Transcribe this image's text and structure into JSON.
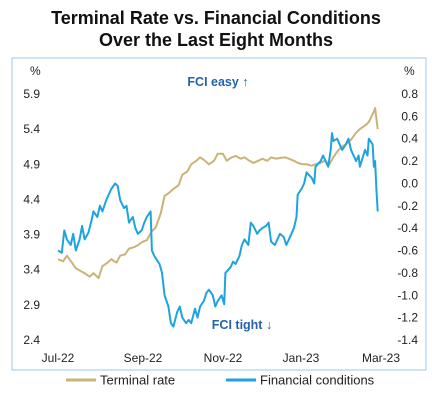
{
  "chart_data": {
    "type": "line",
    "title": [
      "Terminal Rate vs. Financial Conditions",
      "Over the Last Eight Months"
    ],
    "left_axis": {
      "unit": "%",
      "ticks": [
        2.4,
        2.9,
        3.4,
        3.9,
        4.4,
        4.9,
        5.4,
        5.9
      ],
      "ylim": [
        2.4,
        5.9
      ]
    },
    "right_axis": {
      "unit": "%",
      "ticks": [
        -1.4,
        -1.2,
        -1.0,
        -0.8,
        -0.6,
        -0.4,
        -0.2,
        0.0,
        0.2,
        0.4,
        0.6,
        0.8
      ],
      "ylim": [
        -1.4,
        0.8
      ]
    },
    "x_axis": {
      "ticks": [
        "Jul-22",
        "Sep-22",
        "Nov-22",
        "Jan-23",
        "Mar-23"
      ],
      "range": [
        "2022-07-01",
        "2023-03-15"
      ]
    },
    "annotations": {
      "top": "FCI easy ↑",
      "bottom": "FCI tight ↓",
      "color": "#2563a8"
    },
    "grid": false,
    "legend_position": "bottom",
    "series": [
      {
        "name": "Terminal rate",
        "axis": "left",
        "color": "#c9b377",
        "points": [
          [
            "2022-07-01",
            3.55
          ],
          [
            "2022-07-05",
            3.52
          ],
          [
            "2022-07-08",
            3.6
          ],
          [
            "2022-07-12",
            3.5
          ],
          [
            "2022-07-15",
            3.42
          ],
          [
            "2022-07-19",
            3.38
          ],
          [
            "2022-07-22",
            3.35
          ],
          [
            "2022-07-26",
            3.3
          ],
          [
            "2022-07-29",
            3.35
          ],
          [
            "2022-08-02",
            3.28
          ],
          [
            "2022-08-05",
            3.45
          ],
          [
            "2022-08-09",
            3.5
          ],
          [
            "2022-08-12",
            3.55
          ],
          [
            "2022-08-16",
            3.5
          ],
          [
            "2022-08-19",
            3.6
          ],
          [
            "2022-08-23",
            3.62
          ],
          [
            "2022-08-26",
            3.7
          ],
          [
            "2022-08-30",
            3.72
          ],
          [
            "2022-09-02",
            3.75
          ],
          [
            "2022-09-06",
            3.8
          ],
          [
            "2022-09-09",
            3.82
          ],
          [
            "2022-09-13",
            3.95
          ],
          [
            "2022-09-16",
            4.0
          ],
          [
            "2022-09-20",
            4.2
          ],
          [
            "2022-09-23",
            4.45
          ],
          [
            "2022-09-27",
            4.5
          ],
          [
            "2022-09-30",
            4.55
          ],
          [
            "2022-10-04",
            4.6
          ],
          [
            "2022-10-07",
            4.75
          ],
          [
            "2022-10-11",
            4.8
          ],
          [
            "2022-10-14",
            4.9
          ],
          [
            "2022-10-18",
            4.95
          ],
          [
            "2022-10-21",
            5.0
          ],
          [
            "2022-10-25",
            4.95
          ],
          [
            "2022-10-28",
            4.9
          ],
          [
            "2022-11-01",
            4.95
          ],
          [
            "2022-11-04",
            5.05
          ],
          [
            "2022-11-08",
            5.05
          ],
          [
            "2022-11-11",
            4.95
          ],
          [
            "2022-11-15",
            5.0
          ],
          [
            "2022-11-18",
            5.02
          ],
          [
            "2022-11-22",
            4.98
          ],
          [
            "2022-11-25",
            5.0
          ],
          [
            "2022-11-29",
            4.95
          ],
          [
            "2022-12-02",
            4.92
          ],
          [
            "2022-12-06",
            4.95
          ],
          [
            "2022-12-09",
            4.98
          ],
          [
            "2022-12-13",
            4.95
          ],
          [
            "2022-12-16",
            5.0
          ],
          [
            "2022-12-20",
            4.98
          ],
          [
            "2022-12-23",
            4.99
          ],
          [
            "2022-12-27",
            5.0
          ],
          [
            "2022-12-30",
            4.98
          ],
          [
            "2023-01-03",
            4.95
          ],
          [
            "2023-01-06",
            4.92
          ],
          [
            "2023-01-10",
            4.9
          ],
          [
            "2023-01-13",
            4.9
          ],
          [
            "2023-01-17",
            4.88
          ],
          [
            "2023-01-20",
            4.9
          ],
          [
            "2023-01-24",
            4.92
          ],
          [
            "2023-01-27",
            4.95
          ],
          [
            "2023-01-31",
            4.9
          ],
          [
            "2023-02-03",
            5.0
          ],
          [
            "2023-02-07",
            5.1
          ],
          [
            "2023-02-10",
            5.15
          ],
          [
            "2023-02-14",
            5.2
          ],
          [
            "2023-02-17",
            5.25
          ],
          [
            "2023-02-21",
            5.35
          ],
          [
            "2023-02-24",
            5.4
          ],
          [
            "2023-02-28",
            5.45
          ],
          [
            "2023-03-03",
            5.5
          ],
          [
            "2023-03-07",
            5.65
          ],
          [
            "2023-03-08",
            5.7
          ],
          [
            "2023-03-09",
            5.55
          ],
          [
            "2023-03-10",
            5.4
          ]
        ]
      },
      {
        "name": "Financial conditions",
        "axis": "right",
        "color": "#1ea3e0",
        "points": [
          [
            "2022-07-01",
            -0.6
          ],
          [
            "2022-07-04",
            -0.62
          ],
          [
            "2022-07-06",
            -0.42
          ],
          [
            "2022-07-08",
            -0.5
          ],
          [
            "2022-07-11",
            -0.55
          ],
          [
            "2022-07-13",
            -0.45
          ],
          [
            "2022-07-15",
            -0.6
          ],
          [
            "2022-07-18",
            -0.5
          ],
          [
            "2022-07-20",
            -0.38
          ],
          [
            "2022-07-22",
            -0.5
          ],
          [
            "2022-07-25",
            -0.44
          ],
          [
            "2022-07-27",
            -0.35
          ],
          [
            "2022-07-29",
            -0.25
          ],
          [
            "2022-08-01",
            -0.3
          ],
          [
            "2022-08-03",
            -0.2
          ],
          [
            "2022-08-05",
            -0.25
          ],
          [
            "2022-08-08",
            -0.15
          ],
          [
            "2022-08-10",
            -0.1
          ],
          [
            "2022-08-12",
            -0.05
          ],
          [
            "2022-08-15",
            0.0
          ],
          [
            "2022-08-17",
            -0.02
          ],
          [
            "2022-08-19",
            -0.15
          ],
          [
            "2022-08-22",
            -0.22
          ],
          [
            "2022-08-24",
            -0.2
          ],
          [
            "2022-08-26",
            -0.35
          ],
          [
            "2022-08-29",
            -0.3
          ],
          [
            "2022-08-31",
            -0.4
          ],
          [
            "2022-09-02",
            -0.45
          ],
          [
            "2022-09-05",
            -0.42
          ],
          [
            "2022-09-07",
            -0.35
          ],
          [
            "2022-09-09",
            -0.3
          ],
          [
            "2022-09-12",
            -0.25
          ],
          [
            "2022-09-13",
            -0.6
          ],
          [
            "2022-09-15",
            -0.65
          ],
          [
            "2022-09-19",
            -0.72
          ],
          [
            "2022-09-21",
            -0.8
          ],
          [
            "2022-09-23",
            -1.0
          ],
          [
            "2022-09-26",
            -1.1
          ],
          [
            "2022-09-28",
            -1.25
          ],
          [
            "2022-09-30",
            -1.28
          ],
          [
            "2022-10-03",
            -1.15
          ],
          [
            "2022-10-05",
            -1.1
          ],
          [
            "2022-10-07",
            -1.2
          ],
          [
            "2022-10-10",
            -1.25
          ],
          [
            "2022-10-12",
            -1.22
          ],
          [
            "2022-10-14",
            -1.25
          ],
          [
            "2022-10-17",
            -1.12
          ],
          [
            "2022-10-19",
            -1.2
          ],
          [
            "2022-10-21",
            -1.1
          ],
          [
            "2022-10-24",
            -1.05
          ],
          [
            "2022-10-26",
            -0.98
          ],
          [
            "2022-10-28",
            -0.95
          ],
          [
            "2022-10-31",
            -1.0
          ],
          [
            "2022-11-02",
            -1.1
          ],
          [
            "2022-11-04",
            -1.05
          ],
          [
            "2022-11-07",
            -1.0
          ],
          [
            "2022-11-09",
            -1.08
          ],
          [
            "2022-11-10",
            -0.8
          ],
          [
            "2022-11-14",
            -0.75
          ],
          [
            "2022-11-16",
            -0.7
          ],
          [
            "2022-11-18",
            -0.72
          ],
          [
            "2022-11-21",
            -0.65
          ],
          [
            "2022-11-23",
            -0.55
          ],
          [
            "2022-11-25",
            -0.5
          ],
          [
            "2022-11-28",
            -0.55
          ],
          [
            "2022-11-30",
            -0.35
          ],
          [
            "2022-12-02",
            -0.38
          ],
          [
            "2022-12-05",
            -0.45
          ],
          [
            "2022-12-07",
            -0.42
          ],
          [
            "2022-12-09",
            -0.4
          ],
          [
            "2022-12-12",
            -0.38
          ],
          [
            "2022-12-14",
            -0.35
          ],
          [
            "2022-12-16",
            -0.52
          ],
          [
            "2022-12-19",
            -0.55
          ],
          [
            "2022-12-21",
            -0.5
          ],
          [
            "2022-12-23",
            -0.45
          ],
          [
            "2022-12-26",
            -0.48
          ],
          [
            "2022-12-28",
            -0.55
          ],
          [
            "2022-12-30",
            -0.5
          ],
          [
            "2023-01-03",
            -0.4
          ],
          [
            "2023-01-05",
            -0.3
          ],
          [
            "2023-01-06",
            -0.1
          ],
          [
            "2023-01-09",
            -0.05
          ],
          [
            "2023-01-11",
            0.0
          ],
          [
            "2023-01-13",
            0.1
          ],
          [
            "2023-01-17",
            0.05
          ],
          [
            "2023-01-19",
            0.0
          ],
          [
            "2023-01-20",
            0.15
          ],
          [
            "2023-01-24",
            0.2
          ],
          [
            "2023-01-26",
            0.25
          ],
          [
            "2023-01-30",
            0.15
          ],
          [
            "2023-02-01",
            0.3
          ],
          [
            "2023-02-02",
            0.45
          ],
          [
            "2023-02-03",
            0.38
          ],
          [
            "2023-02-06",
            0.4
          ],
          [
            "2023-02-08",
            0.35
          ],
          [
            "2023-02-10",
            0.3
          ],
          [
            "2023-02-13",
            0.35
          ],
          [
            "2023-02-15",
            0.4
          ],
          [
            "2023-02-17",
            0.3
          ],
          [
            "2023-02-21",
            0.2
          ],
          [
            "2023-02-23",
            0.25
          ],
          [
            "2023-02-24",
            0.15
          ],
          [
            "2023-02-28",
            0.3
          ],
          [
            "2023-03-02",
            0.25
          ],
          [
            "2023-03-03",
            0.4
          ],
          [
            "2023-03-06",
            0.35
          ],
          [
            "2023-03-07",
            0.15
          ],
          [
            "2023-03-08",
            0.2
          ],
          [
            "2023-03-09",
            -0.05
          ],
          [
            "2023-03-10",
            -0.25
          ]
        ]
      }
    ]
  }
}
